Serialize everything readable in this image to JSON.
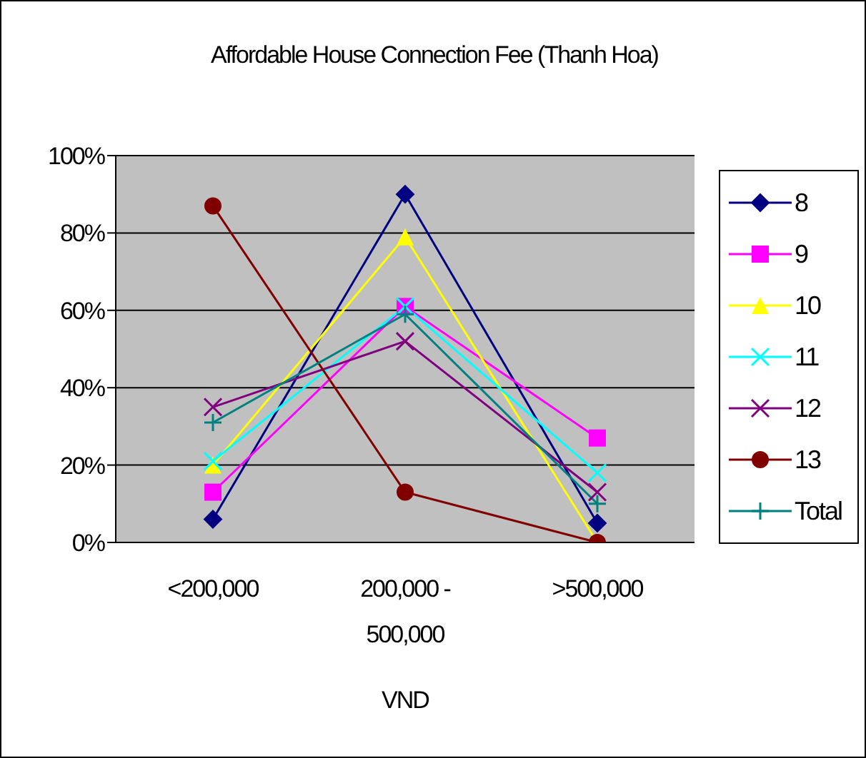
{
  "chart_data": {
    "type": "line",
    "title": "Affordable House Connection Fee (Thanh Hoa)",
    "xlabel": "VND",
    "categories": [
      "<200,000",
      "200,000 - 500,000",
      ">500,000"
    ],
    "ylim": [
      0,
      100
    ],
    "yticks": [
      {
        "value": 0,
        "label": "0%"
      },
      {
        "value": 20,
        "label": "20%"
      },
      {
        "value": 40,
        "label": "40%"
      },
      {
        "value": 60,
        "label": "60%"
      },
      {
        "value": 80,
        "label": "80%"
      },
      {
        "value": 100,
        "label": "100%"
      }
    ],
    "grid": "y",
    "legend": "right",
    "series": [
      {
        "name": "8",
        "color": "#000080",
        "marker": "diamond",
        "values": [
          6,
          90,
          5
        ]
      },
      {
        "name": "9",
        "color": "#ff00ff",
        "marker": "square",
        "values": [
          13,
          61,
          27
        ]
      },
      {
        "name": "10",
        "color": "#ffff00",
        "marker": "triangle",
        "values": [
          20,
          79,
          0
        ]
      },
      {
        "name": "11",
        "color": "#00ffff",
        "marker": "cross",
        "values": [
          21,
          61,
          18
        ]
      },
      {
        "name": "12",
        "color": "#800080",
        "marker": "cross",
        "values": [
          35,
          52,
          13
        ]
      },
      {
        "name": "13",
        "color": "#800000",
        "marker": "circle",
        "values": [
          87,
          13,
          0
        ]
      },
      {
        "name": "Total",
        "color": "#008080",
        "marker": "plus",
        "values": [
          31,
          59,
          10
        ]
      }
    ]
  }
}
